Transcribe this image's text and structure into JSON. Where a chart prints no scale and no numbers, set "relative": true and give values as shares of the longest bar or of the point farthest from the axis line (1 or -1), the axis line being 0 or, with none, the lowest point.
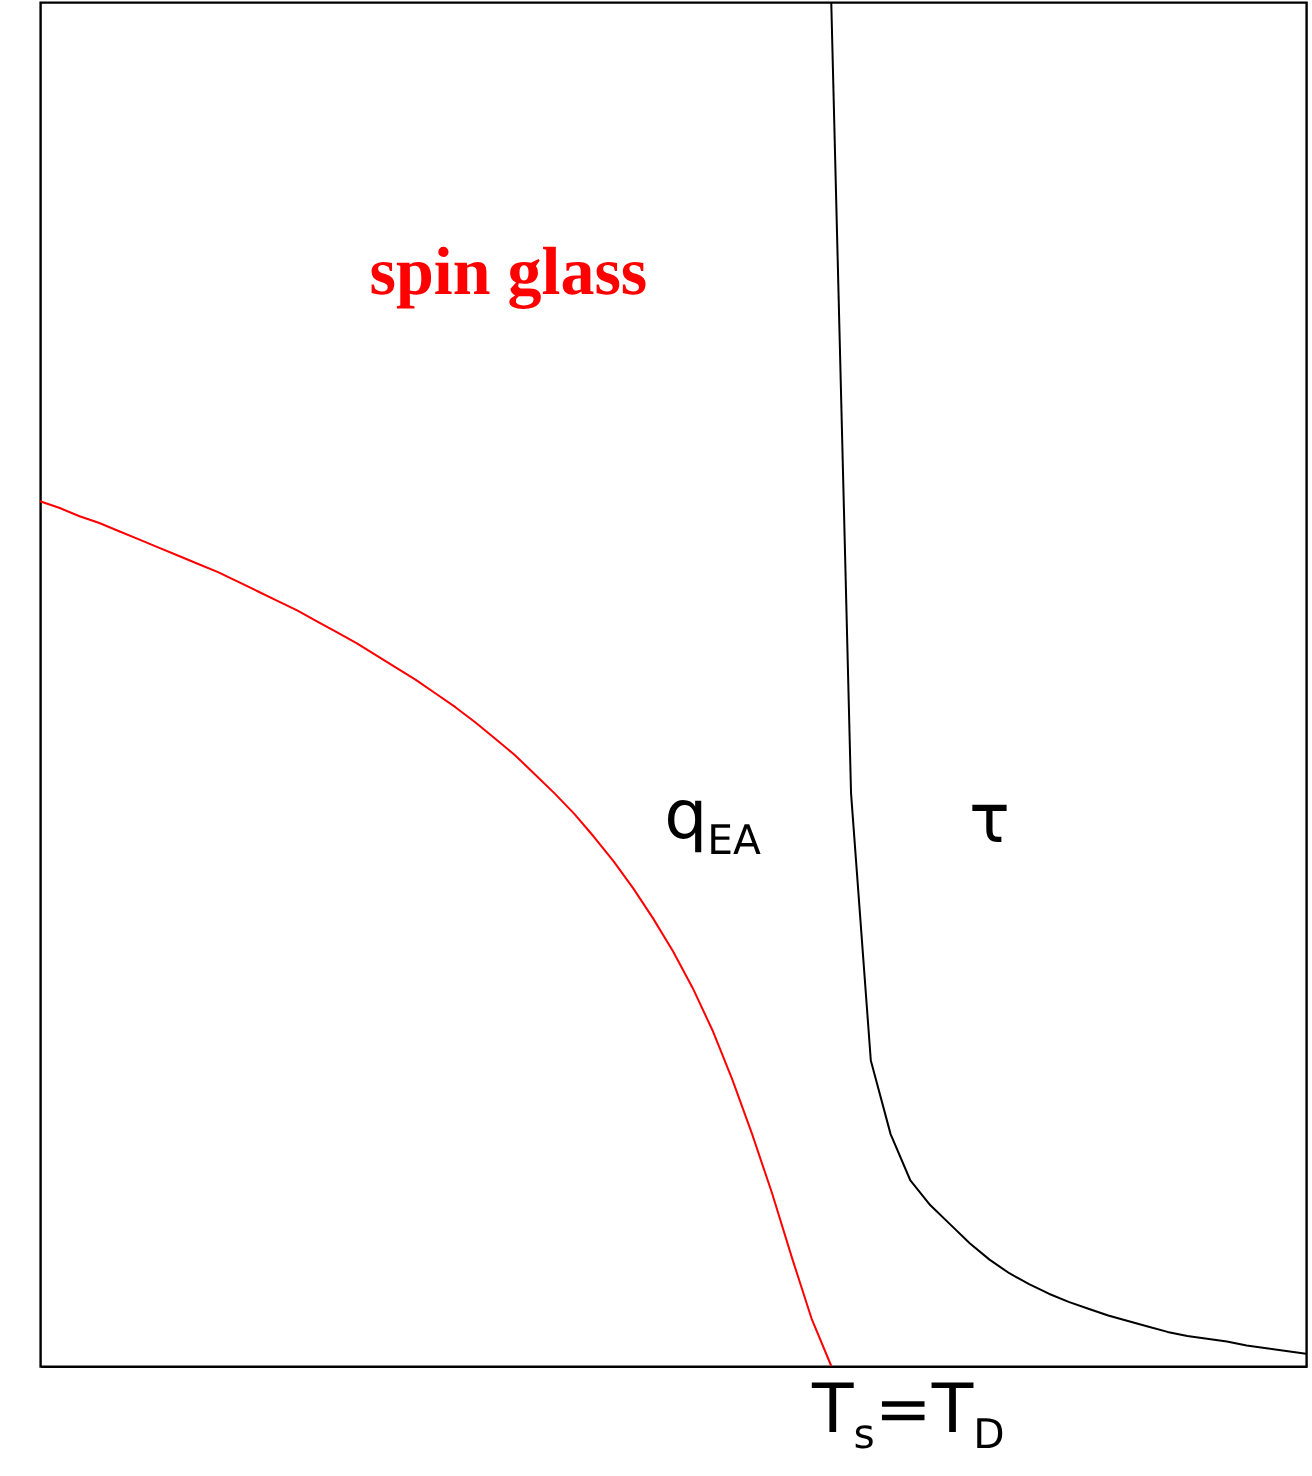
{
  "chart_data": {
    "type": "line",
    "relative": true,
    "categories": [
      null,
      null,
      null,
      null,
      null,
      null,
      null,
      null,
      null,
      null,
      null,
      null,
      null,
      null,
      null,
      null,
      null,
      null,
      null,
      null,
      null,
      null,
      null,
      null,
      null,
      null,
      null,
      null,
      null,
      null,
      null,
      null,
      null,
      null,
      null,
      null,
      null,
      null,
      null,
      null,
      null,
      null,
      null,
      null,
      null,
      null,
      null,
      null,
      null,
      null,
      null,
      null,
      null,
      null,
      null,
      null,
      null,
      null,
      null,
      null,
      null,
      null,
      null,
      null,
      null
    ],
    "series": [
      {
        "name": "q$_{EA}$",
        "color": "#ff0000",
        "values": [
          0.634,
          0.629,
          0.623,
          0.618,
          0.612,
          0.606,
          0.6,
          0.594,
          0.588,
          0.582,
          0.575,
          0.568,
          0.561,
          0.554,
          0.546,
          0.538,
          0.53,
          0.521,
          0.512,
          0.503,
          0.493,
          0.483,
          0.472,
          0.46,
          0.448,
          0.434,
          0.42,
          0.405,
          0.388,
          0.37,
          0.35,
          0.328,
          0.304,
          0.277,
          0.246,
          0.21,
          0.17,
          0.127,
          0.08,
          0.035,
          0,
          null,
          null,
          null,
          null,
          null,
          null,
          null,
          null,
          null,
          null,
          null,
          null,
          null,
          null,
          null,
          null,
          null,
          null,
          null,
          null,
          null,
          null,
          null,
          null
        ]
      },
      {
        "name": "τ",
        "color": "#000000",
        "values": [
          null,
          null,
          null,
          null,
          null,
          null,
          null,
          null,
          null,
          null,
          null,
          null,
          null,
          null,
          null,
          null,
          null,
          null,
          null,
          null,
          null,
          null,
          null,
          null,
          null,
          null,
          null,
          null,
          null,
          null,
          null,
          null,
          null,
          null,
          null,
          null,
          null,
          null,
          null,
          null,
          1,
          0.42,
          0.224,
          0.17,
          0.136,
          0.118,
          0.104,
          0.09,
          0.078,
          0.068,
          0.06,
          0.053,
          0.047,
          0.042,
          0.037,
          0.033,
          0.029,
          0.025,
          0.022,
          0.02,
          0.018,
          0.015,
          0.013,
          0.011,
          0.009
        ]
      }
    ],
    "annotations": [
      "spin glass",
      "T$_{s}$=T$_{D}$"
    ],
    "grid": false,
    "marker": "none",
    "line_style": "solid"
  }
}
